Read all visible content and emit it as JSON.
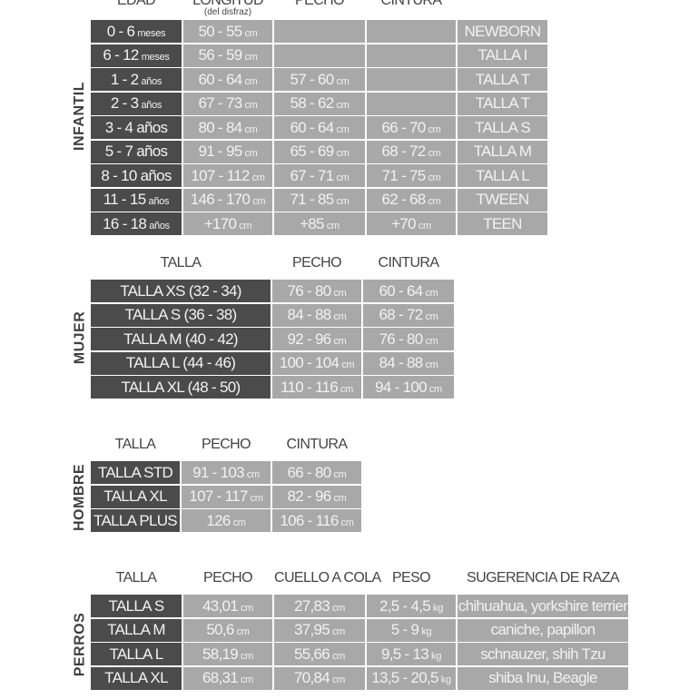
{
  "sections": [
    {
      "id": "infantil",
      "label": "INFANTIL",
      "headers": [
        {
          "t": "EDAD"
        },
        {
          "t": "LONGITUD",
          "sub": "(del disfraz)"
        },
        {
          "t": "PECHO"
        },
        {
          "t": "CINTURA"
        },
        {
          "t": ""
        }
      ],
      "rows": [
        [
          {
            "v": "0 - 6",
            "u": "meses"
          },
          {
            "v": "50 - 55",
            "u": "cm"
          },
          {
            "v": ""
          },
          {
            "v": ""
          },
          {
            "v": "NEWBORN"
          }
        ],
        [
          {
            "v": "6 - 12",
            "u": "meses"
          },
          {
            "v": "56 - 59",
            "u": "cm"
          },
          {
            "v": ""
          },
          {
            "v": ""
          },
          {
            "v": "TALLA I"
          }
        ],
        [
          {
            "v": "1 - 2",
            "u": "años"
          },
          {
            "v": "60 - 64",
            "u": "cm"
          },
          {
            "v": "57 - 60",
            "u": "cm"
          },
          {
            "v": ""
          },
          {
            "v": "TALLA T"
          }
        ],
        [
          {
            "v": "2 - 3",
            "u": "años"
          },
          {
            "v": "67 - 73",
            "u": "cm"
          },
          {
            "v": "58 - 62",
            "u": "cm"
          },
          {
            "v": ""
          },
          {
            "v": "TALLA T"
          }
        ],
        [
          {
            "v": "3 - 4 años"
          },
          {
            "v": "80 - 84",
            "u": "cm"
          },
          {
            "v": "60 - 64",
            "u": "cm"
          },
          {
            "v": "66 - 70",
            "u": "cm"
          },
          {
            "v": "TALLA S"
          }
        ],
        [
          {
            "v": "5 - 7 años"
          },
          {
            "v": "91 - 95",
            "u": "cm"
          },
          {
            "v": "65 - 69",
            "u": "cm"
          },
          {
            "v": "68 - 72",
            "u": "cm"
          },
          {
            "v": "TALLA M"
          }
        ],
        [
          {
            "v": "8 - 10 años"
          },
          {
            "v": "107 - 112",
            "u": "cm"
          },
          {
            "v": "67 - 71",
            "u": "cm"
          },
          {
            "v": "71 - 75",
            "u": "cm"
          },
          {
            "v": "TALLA L"
          }
        ],
        [
          {
            "v": "11 - 15",
            "u": "años"
          },
          {
            "v": "146 - 170",
            "u": "cm"
          },
          {
            "v": "71 - 85",
            "u": "cm"
          },
          {
            "v": "62 - 68",
            "u": "cm"
          },
          {
            "v": "TWEEN"
          }
        ],
        [
          {
            "v": "16 - 18",
            "u": "años"
          },
          {
            "v": "+170",
            "u": "cm"
          },
          {
            "v": "+85",
            "u": "cm"
          },
          {
            "v": "+70",
            "u": "cm"
          },
          {
            "v": "TEEN"
          }
        ]
      ]
    },
    {
      "id": "mujer",
      "label": "MUJER",
      "headers": [
        {
          "t": "TALLA"
        },
        {
          "t": "PECHO"
        },
        {
          "t": "CINTURA"
        }
      ],
      "rows": [
        [
          {
            "v": "TALLA XS (32 - 34)"
          },
          {
            "v": "76 - 80",
            "u": "cm"
          },
          {
            "v": "60 - 64",
            "u": "cm"
          }
        ],
        [
          {
            "v": "TALLA S (36 - 38)"
          },
          {
            "v": "84 - 88",
            "u": "cm"
          },
          {
            "v": "68 - 72",
            "u": "cm"
          }
        ],
        [
          {
            "v": "TALLA M (40 - 42)"
          },
          {
            "v": "92 - 96",
            "u": "cm"
          },
          {
            "v": "76 - 80",
            "u": "cm"
          }
        ],
        [
          {
            "v": "TALLA L (44 - 46)"
          },
          {
            "v": "100 - 104",
            "u": "cm"
          },
          {
            "v": "84 - 88",
            "u": "cm"
          }
        ],
        [
          {
            "v": "TALLA XL (48 - 50)"
          },
          {
            "v": "110 - 116",
            "u": "cm"
          },
          {
            "v": "94 - 100",
            "u": "cm"
          }
        ]
      ]
    },
    {
      "id": "hombre",
      "label": "HOMBRE",
      "headers": [
        {
          "t": "TALLA"
        },
        {
          "t": "PECHO"
        },
        {
          "t": "CINTURA"
        }
      ],
      "rows": [
        [
          {
            "v": "TALLA STD"
          },
          {
            "v": "91 - 103",
            "u": "cm"
          },
          {
            "v": "66 - 80",
            "u": "cm"
          }
        ],
        [
          {
            "v": "TALLA XL"
          },
          {
            "v": "107 - 117",
            "u": "cm"
          },
          {
            "v": "82 - 96",
            "u": "cm"
          }
        ],
        [
          {
            "v": "TALLA PLUS"
          },
          {
            "v": "126",
            "u": "cm"
          },
          {
            "v": "106 - 116",
            "u": "cm"
          }
        ]
      ]
    },
    {
      "id": "perros",
      "label": "PERROS",
      "headers": [
        {
          "t": "TALLA"
        },
        {
          "t": "PECHO"
        },
        {
          "t": "CUELLO A COLA"
        },
        {
          "t": "PESO"
        },
        {
          "t": "SUGERENCIA DE RAZA"
        }
      ],
      "rows": [
        [
          {
            "v": "TALLA S"
          },
          {
            "v": "43,01",
            "u": "cm"
          },
          {
            "v": "27,83",
            "u": "cm"
          },
          {
            "v": "2,5 - 4,5",
            "u": "kg"
          },
          {
            "v": "chihuahua, yorkshire terrier"
          }
        ],
        [
          {
            "v": "TALLA M"
          },
          {
            "v": "50,6",
            "u": "cm"
          },
          {
            "v": "37,95",
            "u": "cm"
          },
          {
            "v": "5 - 9",
            "u": "kg"
          },
          {
            "v": "caniche, papillon"
          }
        ],
        [
          {
            "v": "TALLA L"
          },
          {
            "v": "58,19",
            "u": "cm"
          },
          {
            "v": "55,66",
            "u": "cm"
          },
          {
            "v": "9,5 - 13",
            "u": "kg"
          },
          {
            "v": "schnauzer, shih Tzu"
          }
        ],
        [
          {
            "v": "TALLA XL"
          },
          {
            "v": "68,31",
            "u": "cm"
          },
          {
            "v": "70,84",
            "u": "cm"
          },
          {
            "v": "13,5 - 20,5",
            "u": "kg"
          },
          {
            "v": "shiba Inu, Beagle"
          }
        ]
      ]
    }
  ],
  "colors": {
    "dark_cell": "#4b4b4b",
    "light_cell": "#a8a8a8",
    "cell_text": "#f2f2f2",
    "header_text": "#444444"
  }
}
